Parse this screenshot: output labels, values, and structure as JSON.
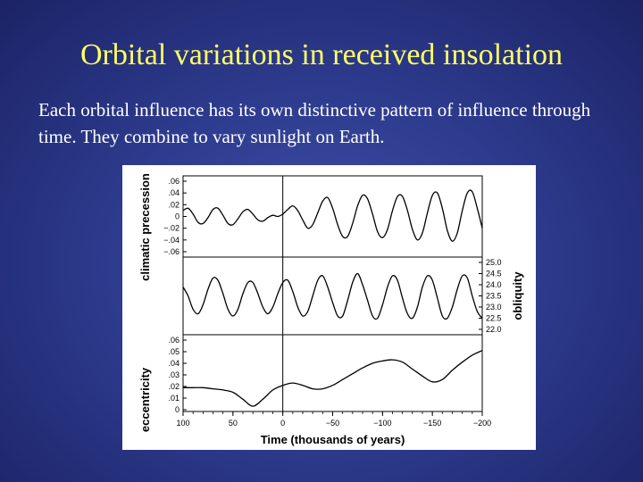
{
  "slide": {
    "title": "Orbital variations in received insolation",
    "body": "Each orbital influence has its own distinctive pattern of influence through time. They combine to vary sunlight on Earth."
  },
  "chart_data": {
    "type": "line",
    "xlabel": "Time (thousands of years)",
    "x_ticks": [
      100,
      50,
      0,
      -50,
      -100,
      -150,
      -200
    ],
    "xlim": [
      100,
      -200
    ],
    "panels": [
      {
        "name": "climatic precession",
        "ylabel": "climatic precession",
        "y_axis_side": "left",
        "y_ticks": [
          ".06",
          ".04",
          ".02",
          "0",
          "-.02",
          "-.04",
          "-.06"
        ],
        "ylim": [
          -0.06,
          0.06
        ],
        "x": [
          100,
          95,
          90,
          85,
          80,
          75,
          70,
          65,
          60,
          55,
          50,
          45,
          40,
          35,
          30,
          25,
          20,
          15,
          10,
          5,
          0,
          -5,
          -10,
          -15,
          -20,
          -25,
          -30,
          -35,
          -40,
          -45,
          -50,
          -55,
          -60,
          -65,
          -70,
          -75,
          -80,
          -85,
          -90,
          -95,
          -100,
          -105,
          -110,
          -115,
          -120,
          -125,
          -130,
          -135,
          -140,
          -145,
          -150,
          -155,
          -160,
          -165,
          -170,
          -175,
          -180,
          -185,
          -190,
          -195,
          -200
        ],
        "values": [
          0.01,
          0.014,
          0.004,
          -0.01,
          -0.012,
          -0.002,
          0.012,
          0.014,
          0.002,
          -0.012,
          -0.014,
          -0.004,
          0.008,
          0.012,
          0.004,
          -0.006,
          -0.008,
          -0.002,
          0.002,
          0.0,
          0.004,
          0.012,
          0.018,
          0.01,
          -0.006,
          -0.02,
          -0.014,
          0.006,
          0.026,
          0.032,
          0.014,
          -0.014,
          -0.034,
          -0.034,
          -0.012,
          0.018,
          0.036,
          0.03,
          0.004,
          -0.026,
          -0.036,
          -0.022,
          0.01,
          0.034,
          0.034,
          0.01,
          -0.022,
          -0.04,
          -0.028,
          0.006,
          0.036,
          0.04,
          0.014,
          -0.024,
          -0.042,
          -0.028,
          0.01,
          0.04,
          0.042,
          0.014,
          -0.02
        ]
      },
      {
        "name": "obliquity",
        "ylabel": "obliquity",
        "y_axis_side": "right",
        "y_ticks": [
          "25.0",
          "24.5",
          "24.0",
          "23.5",
          "23.0",
          "22.5",
          "22.0"
        ],
        "ylim": [
          22.0,
          25.0
        ],
        "x": [
          100,
          95,
          90,
          85,
          80,
          75,
          70,
          65,
          60,
          55,
          50,
          45,
          40,
          35,
          30,
          25,
          20,
          15,
          10,
          5,
          0,
          -5,
          -10,
          -15,
          -20,
          -25,
          -30,
          -35,
          -40,
          -45,
          -50,
          -55,
          -60,
          -65,
          -70,
          -75,
          -80,
          -85,
          -90,
          -95,
          -100,
          -105,
          -110,
          -115,
          -120,
          -125,
          -130,
          -135,
          -140,
          -145,
          -150,
          -155,
          -160,
          -165,
          -170,
          -175,
          -180,
          -185,
          -190,
          -195,
          -200
        ],
        "values": [
          23.9,
          23.5,
          22.9,
          22.7,
          23.1,
          23.8,
          24.3,
          24.2,
          23.6,
          22.9,
          22.6,
          22.9,
          23.6,
          24.1,
          24.1,
          23.6,
          23.0,
          22.7,
          23.0,
          23.6,
          24.1,
          24.2,
          23.7,
          23.0,
          22.6,
          22.8,
          23.5,
          24.2,
          24.4,
          23.9,
          23.2,
          22.6,
          22.6,
          23.3,
          24.1,
          24.5,
          24.0,
          23.3,
          22.6,
          22.5,
          23.1,
          23.9,
          24.4,
          24.2,
          23.4,
          22.7,
          22.5,
          23.0,
          23.9,
          24.4,
          24.2,
          23.4,
          22.6,
          22.5,
          23.0,
          23.8,
          24.4,
          24.3,
          23.5,
          22.8,
          22.5
        ]
      },
      {
        "name": "eccentricity",
        "ylabel": "eccentricity",
        "y_axis_side": "left",
        "y_ticks": [
          ".06",
          ".05",
          ".04",
          ".03",
          ".02",
          ".01",
          "0"
        ],
        "ylim": [
          0,
          0.06
        ],
        "x": [
          100,
          90,
          80,
          70,
          60,
          50,
          40,
          30,
          20,
          10,
          0,
          -10,
          -20,
          -30,
          -40,
          -50,
          -60,
          -70,
          -80,
          -90,
          -100,
          -110,
          -120,
          -130,
          -140,
          -150,
          -160,
          -170,
          -180,
          -190,
          -200
        ],
        "values": [
          0.019,
          0.019,
          0.019,
          0.018,
          0.017,
          0.015,
          0.009,
          0.003,
          0.009,
          0.017,
          0.021,
          0.023,
          0.021,
          0.018,
          0.018,
          0.021,
          0.026,
          0.031,
          0.036,
          0.04,
          0.042,
          0.043,
          0.041,
          0.035,
          0.029,
          0.024,
          0.026,
          0.034,
          0.041,
          0.047,
          0.051
        ]
      }
    ]
  }
}
